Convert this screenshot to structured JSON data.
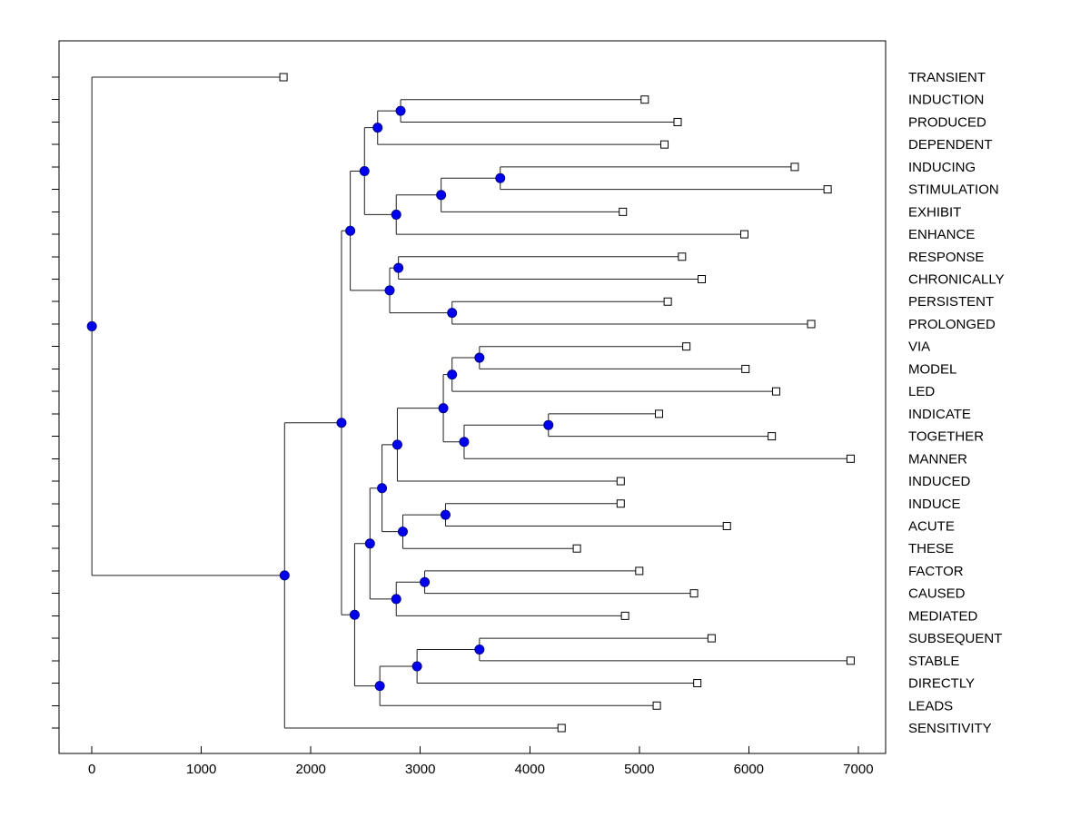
{
  "figure": {
    "background": "#ffffff",
    "colors": {
      "axis": "#000000",
      "branch": "#1f1f1f",
      "internal_node_fill": "#0000ee",
      "internal_node_edge": "#00008b",
      "leaf_marker_fill": "#ffffff",
      "leaf_marker_edge": "#000000",
      "label_text": "#000000"
    }
  },
  "chart_data": {
    "type": "dendrogram",
    "orientation": "horizontal-root-left",
    "title": "",
    "xlabel": "",
    "ylabel": "",
    "grid": false,
    "legend": false,
    "xlim": [
      -300,
      7250
    ],
    "x_ticks": [
      0,
      1000,
      2000,
      3000,
      4000,
      5000,
      6000,
      7000
    ],
    "leaf_labels_top_to_bottom": [
      "TRANSIENT",
      "INDUCTION",
      "PRODUCED",
      "DEPENDENT",
      "INDUCING",
      "STIMULATION",
      "EXHIBIT",
      "ENHANCE",
      "RESPONSE",
      "CHRONICALLY",
      "PERSISTENT",
      "PROLONGED",
      "VIA",
      "MODEL",
      "LED",
      "INDICATE",
      "TOGETHER",
      "MANNER",
      "INDUCED",
      "INDUCE",
      "ACUTE",
      "THESE",
      "FACTOR",
      "CAUSED",
      "MEDIATED",
      "SUBSEQUENT",
      "STABLE",
      "DIRECTLY",
      "LEADS",
      "SENSITIVITY"
    ],
    "tree": {
      "d": 0,
      "children": [
        {
          "name": "TRANSIENT",
          "d": 1750
        },
        {
          "d": 1760,
          "children": [
            {
              "d": 2280,
              "children": [
                {
                  "d": 2360,
                  "children": [
                    {
                      "d": 2490,
                      "children": [
                        {
                          "d": 2610,
                          "children": [
                            {
                              "d": 2820,
                              "children": [
                                {
                                  "name": "INDUCTION",
                                  "d": 5050
                                },
                                {
                                  "name": "PRODUCED",
                                  "d": 5350
                                }
                              ]
                            },
                            {
                              "name": "DEPENDENT",
                              "d": 5230
                            }
                          ]
                        },
                        {
                          "d": 2780,
                          "children": [
                            {
                              "d": 3190,
                              "children": [
                                {
                                  "d": 3730,
                                  "children": [
                                    {
                                      "name": "INDUCING",
                                      "d": 6420
                                    },
                                    {
                                      "name": "STIMULATION",
                                      "d": 6720
                                    }
                                  ]
                                },
                                {
                                  "name": "EXHIBIT",
                                  "d": 4850
                                }
                              ]
                            },
                            {
                              "name": "ENHANCE",
                              "d": 5960
                            }
                          ]
                        }
                      ]
                    },
                    {
                      "d": 2720,
                      "children": [
                        {
                          "d": 2800,
                          "children": [
                            {
                              "name": "RESPONSE",
                              "d": 5390
                            },
                            {
                              "name": "CHRONICALLY",
                              "d": 5570
                            }
                          ]
                        },
                        {
                          "d": 3290,
                          "children": [
                            {
                              "name": "PERSISTENT",
                              "d": 5260
                            },
                            {
                              "name": "PROLONGED",
                              "d": 6570
                            }
                          ]
                        }
                      ]
                    }
                  ]
                },
                {
                  "d": 2400,
                  "children": [
                    {
                      "d": 2540,
                      "children": [
                        {
                          "d": 2650,
                          "children": [
                            {
                              "d": 2790,
                              "children": [
                                {
                                  "d": 3210,
                                  "children": [
                                    {
                                      "d": 3290,
                                      "children": [
                                        {
                                          "d": 3540,
                                          "children": [
                                            {
                                              "name": "VIA",
                                              "d": 5430
                                            },
                                            {
                                              "name": "MODEL",
                                              "d": 5970
                                            }
                                          ]
                                        },
                                        {
                                          "name": "LED",
                                          "d": 6250
                                        }
                                      ]
                                    },
                                    {
                                      "d": 3400,
                                      "children": [
                                        {
                                          "d": 4170,
                                          "children": [
                                            {
                                              "name": "INDICATE",
                                              "d": 5180
                                            },
                                            {
                                              "name": "TOGETHER",
                                              "d": 6210
                                            }
                                          ]
                                        },
                                        {
                                          "name": "MANNER",
                                          "d": 6930
                                        }
                                      ]
                                    }
                                  ]
                                },
                                {
                                  "name": "INDUCED",
                                  "d": 4830
                                }
                              ]
                            },
                            {
                              "d": 2840,
                              "children": [
                                {
                                  "d": 3230,
                                  "children": [
                                    {
                                      "name": "INDUCE",
                                      "d": 4830
                                    },
                                    {
                                      "name": "ACUTE",
                                      "d": 5800
                                    }
                                  ]
                                },
                                {
                                  "name": "THESE",
                                  "d": 4430
                                }
                              ]
                            }
                          ]
                        },
                        {
                          "d": 2780,
                          "children": [
                            {
                              "d": 3040,
                              "children": [
                                {
                                  "name": "FACTOR",
                                  "d": 5000
                                },
                                {
                                  "name": "CAUSED",
                                  "d": 5500
                                }
                              ]
                            },
                            {
                              "name": "MEDIATED",
                              "d": 4870
                            }
                          ]
                        }
                      ]
                    },
                    {
                      "d": 2630,
                      "children": [
                        {
                          "d": 2970,
                          "children": [
                            {
                              "d": 3540,
                              "children": [
                                {
                                  "name": "SUBSEQUENT",
                                  "d": 5660
                                },
                                {
                                  "name": "STABLE",
                                  "d": 6930
                                }
                              ]
                            },
                            {
                              "name": "DIRECTLY",
                              "d": 5530
                            }
                          ]
                        },
                        {
                          "name": "LEADS",
                          "d": 5160
                        }
                      ]
                    }
                  ]
                }
              ]
            },
            {
              "name": "SENSITIVITY",
              "d": 4290
            }
          ]
        }
      ]
    }
  }
}
